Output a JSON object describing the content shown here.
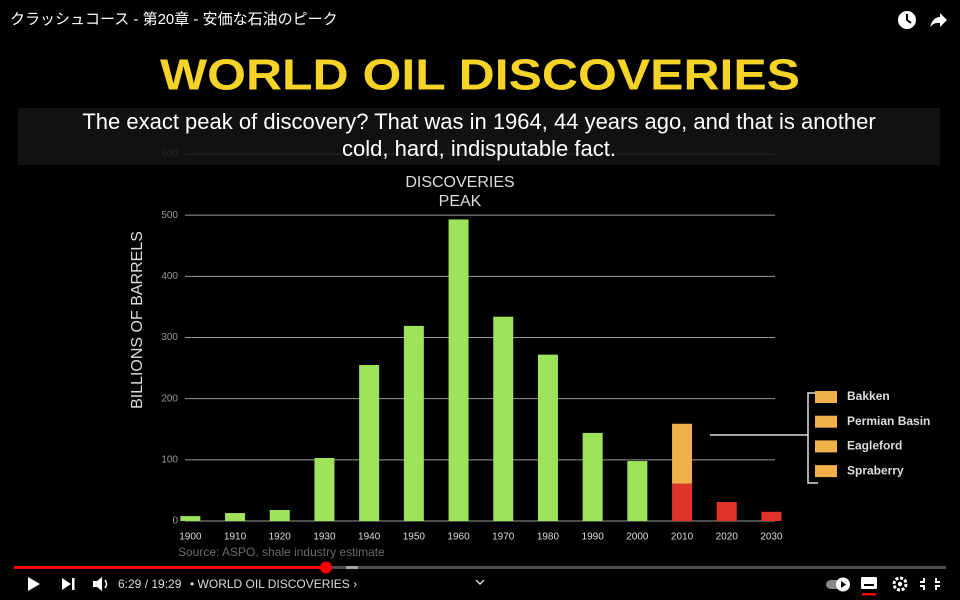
{
  "video_title": "クラッシュコース - 第20章 - 安価な石油のピーク",
  "caption": [
    "The exact peak of discovery? That was in 1964, 44 years ago, and that is another",
    "cold, hard, indisputable fact."
  ],
  "chart_data": {
    "type": "bar",
    "title": "WORLD OIL DISCOVERIES",
    "y_label": "BILLIONS OF BARRELS",
    "annotation": [
      "DISCOVERIES",
      "PEAK"
    ],
    "source": "Source: ASPO, shale industry estimate",
    "categories": [
      "1900",
      "1910",
      "1920",
      "1930",
      "1940",
      "1950",
      "1960",
      "1970",
      "1980",
      "1990",
      "2000",
      "2010",
      "2020",
      "2030"
    ],
    "series": [
      {
        "colors": [
          "#9ee35b",
          "#9ee35b",
          "#9ee35b",
          "#9ee35b",
          "#9ee35b",
          "#9ee35b",
          "#9ee35b",
          "#9ee35b",
          "#9ee35b",
          "#9ee35b",
          "#9ee35b",
          "#e0342a",
          "#e0342a",
          "#e0342a"
        ],
        "values": [
          8,
          13,
          18,
          103,
          255,
          319,
          493,
          334,
          272,
          144,
          98,
          61,
          31,
          15
        ]
      },
      {
        "color": "#f0b04a",
        "values": [
          null,
          null,
          null,
          null,
          null,
          null,
          null,
          null,
          null,
          null,
          null,
          98,
          null,
          null
        ]
      }
    ],
    "ylim": [
      0,
      600
    ],
    "yticks": [
      0,
      100,
      200,
      300,
      400,
      500,
      600
    ],
    "grid": true,
    "legend": {
      "items": [
        "Bakken",
        "Permian Basin",
        "Eagleford",
        "Spraberry"
      ],
      "color": "#f0b04a",
      "position": "right"
    }
  },
  "player": {
    "time": "6:29 / 19:29",
    "chapter": "• WORLD OIL DISCOVERIES ›"
  }
}
